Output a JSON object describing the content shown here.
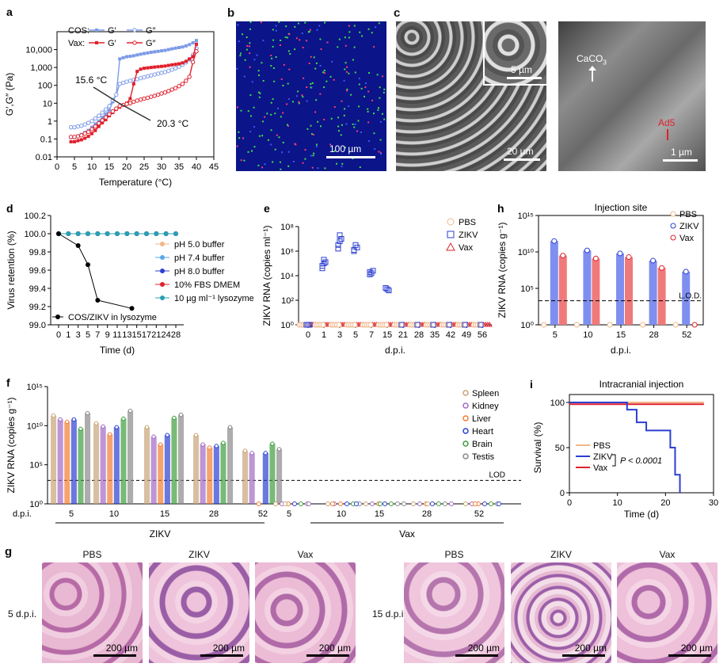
{
  "panel_labels": {
    "a": "a",
    "b": "b",
    "c": "c",
    "d": "d",
    "e": "e",
    "f": "f",
    "g": "g",
    "h": "h",
    "i": "i"
  },
  "colors": {
    "cos": "#7d9be8",
    "vax": "#e0202c",
    "pbs": "#f0b78a",
    "zikv": "#2b3fd1",
    "blue_fill": "#7f8ff0",
    "red_fill": "#f07a7a"
  },
  "images": {
    "b_scale": "100 µm",
    "c_inset_scale": "5 µm",
    "c_scale": "20 µm",
    "c2_label1": "CaCO",
    "c2_label1_sub": "3",
    "c2_label2": "Ad5",
    "c2_scale": "1 µm"
  },
  "panel_g": {
    "row_labels": [
      "5 d.p.i.",
      "15 d.p.i."
    ],
    "titles": [
      "PBS",
      "ZIKV",
      "Vax",
      "PBS",
      "ZIKV",
      "Vax"
    ],
    "scale": "200 µm"
  },
  "chart_data": [
    {
      "id": "a",
      "type": "line",
      "xlabel": "Temperature (°C)",
      "ylabel": "G′,G″ (Pa)",
      "xlim": [
        0,
        45
      ],
      "ylim": [
        0.01,
        100000
      ],
      "yscale": "log",
      "xticks": [
        "0",
        "5",
        "10",
        "15",
        "20",
        "25",
        "30",
        "35",
        "40",
        "45"
      ],
      "yticks": [
        "0.01",
        "0.1",
        "1",
        "10",
        "100",
        "1,000",
        "10,000"
      ],
      "legend_rows": [
        "COS:",
        "Vax:"
      ],
      "legend_items": [
        "G′",
        "G″"
      ],
      "annotations": [
        "15.6 °C",
        "20.3 °C"
      ],
      "x": [
        4,
        5,
        6,
        7,
        8,
        9,
        10,
        11,
        12,
        13,
        14,
        15,
        16,
        17,
        18,
        19,
        20,
        21,
        22,
        23,
        24,
        25,
        26,
        27,
        28,
        29,
        30,
        31,
        32,
        33,
        34,
        35,
        36,
        37,
        38,
        39,
        40
      ],
      "series": [
        {
          "name": "COS G′",
          "y": [
            0.12,
            0.12,
            0.15,
            0.18,
            0.23,
            0.3,
            0.45,
            0.7,
            1.0,
            1.6,
            2.5,
            4,
            12,
            30,
            3000,
            3500,
            4000,
            4200,
            4500,
            5000,
            5500,
            6000,
            6500,
            7000,
            7500,
            8000,
            8500,
            9000,
            10000,
            11000,
            12000,
            13000,
            14000,
            16000,
            19000,
            24000,
            32000
          ]
        },
        {
          "name": "COS G″",
          "y": [
            0.45,
            0.45,
            0.5,
            0.55,
            0.65,
            0.8,
            1.0,
            1.4,
            2.0,
            3.0,
            4.5,
            7,
            15,
            30,
            120,
            140,
            160,
            180,
            200,
            220,
            250,
            280,
            320,
            360,
            400,
            450,
            500,
            550,
            650,
            750,
            900,
            1100,
            1400,
            1900,
            2800,
            5000,
            12000
          ]
        },
        {
          "name": "Vax G′",
          "y": [
            0.07,
            0.07,
            0.08,
            0.09,
            0.11,
            0.14,
            0.2,
            0.3,
            0.5,
            0.8,
            1.2,
            2.0,
            3.0,
            4.5,
            6,
            8,
            10,
            18,
            120,
            600,
            800,
            900,
            950,
            1000,
            1050,
            1100,
            1150,
            1200,
            1300,
            1400,
            1500,
            1600,
            1800,
            2200,
            3000,
            4000,
            20000
          ]
        },
        {
          "name": "Vax G″",
          "y": [
            0.13,
            0.13,
            0.14,
            0.16,
            0.2,
            0.25,
            0.35,
            0.5,
            0.75,
            1.1,
            1.6,
            2.4,
            3.5,
            5,
            7,
            8,
            9,
            10,
            12,
            14,
            16,
            18,
            20,
            23,
            26,
            30,
            35,
            40,
            48,
            58,
            70,
            90,
            120,
            180,
            300,
            2000,
            8000
          ]
        }
      ]
    },
    {
      "id": "d",
      "type": "line",
      "xlabel": "Time (d)",
      "ylabel": "Virus retention (%)",
      "ylim": [
        99.0,
        100.2
      ],
      "xticks": [
        "0",
        "1",
        "3",
        "5",
        "7",
        "9",
        "11",
        "13",
        "15",
        "17",
        "21",
        "24",
        "28"
      ],
      "yticks": [
        "99.0",
        "99.2",
        "99.4",
        "99.6",
        "99.8",
        "100.0",
        "100.2"
      ],
      "legend": [
        "pH 5.0 buffer",
        "pH 7.4 buffer",
        "pH 8.0 buffer",
        "10% FBS DMEM",
        "10 µg ml⁻¹ lysozyme",
        "COS/ZIKV in lysozyme"
      ],
      "series": [
        {
          "name": "pH 5.0 buffer",
          "color": "#f0b78a",
          "y": 100.0
        },
        {
          "name": "pH 7.4 buffer",
          "color": "#5ba7e8",
          "y": 100.0
        },
        {
          "name": "pH 8.0 buffer",
          "color": "#2b3fd1",
          "y": 100.0
        },
        {
          "name": "10% FBS DMEM",
          "color": "#e0202c",
          "y": 100.0
        },
        {
          "name": "10 µg ml⁻¹ lysozyme",
          "color": "#27a0b4",
          "y": 100.0
        },
        {
          "name": "COS/ZIKV in lysozyme",
          "color": "#000000",
          "x": [
            0,
            3,
            5,
            7,
            14
          ],
          "y": [
            100.0,
            99.87,
            99.66,
            99.27,
            99.18
          ]
        }
      ]
    },
    {
      "id": "e",
      "type": "scatter",
      "xlabel": "d.p.i.",
      "ylabel": "ZIKV RNA (copies ml⁻¹)",
      "xticks": [
        "0",
        "1",
        "3",
        "5",
        "7",
        "15",
        "21",
        "28",
        "35",
        "42",
        "49",
        "56"
      ],
      "yticks": [
        "10⁰",
        "10²",
        "10⁴",
        "10⁶",
        "10⁸"
      ],
      "legend": [
        "PBS",
        "ZIKV",
        "Vax"
      ],
      "zikv_log": [
        [
          0,
          0,
          0
        ],
        [
          4.6,
          5.0,
          5.1,
          4.8,
          5.3
        ],
        [
          6.2,
          6.8,
          7.0,
          6.5,
          7.3
        ],
        [
          6.1,
          6.5,
          6.3,
          6.0
        ],
        [
          4.3,
          4.2,
          4.4,
          4.1
        ],
        [
          3.0,
          2.9,
          2.8
        ],
        [
          0
        ],
        [
          0
        ],
        [
          0
        ],
        [
          0
        ],
        [
          0
        ],
        [
          0
        ]
      ]
    },
    {
      "id": "h",
      "type": "bar",
      "title": "Injection site",
      "xlabel": "d.p.i.",
      "ylabel": "ZIKV RNA (copies g⁻¹)",
      "categories": [
        "5",
        "10",
        "15",
        "28",
        "52"
      ],
      "yticks": [
        "10⁰",
        "10⁵",
        "10¹⁰",
        "10¹⁵"
      ],
      "lod": "L.O.D.",
      "lod_log": 3.3,
      "legend": [
        "PBS",
        "ZIKV",
        "Vax"
      ],
      "series": [
        {
          "name": "PBS",
          "values": [
            0,
            0,
            0,
            0,
            0
          ]
        },
        {
          "name": "ZIKV",
          "values": [
            11.5,
            10.2,
            9.8,
            8.8,
            7.3
          ]
        },
        {
          "name": "Vax",
          "values": [
            9.5,
            9.1,
            9.3,
            7.8,
            0
          ]
        }
      ]
    },
    {
      "id": "f",
      "type": "bar",
      "ylabel": "ZIKV RNA (copies g⁻¹)",
      "yticks": [
        "10⁰",
        "10⁵",
        "10¹⁰",
        "10¹⁵"
      ],
      "lod": "LOD",
      "lod_log": 3.0,
      "xrow": "d.p.i.",
      "categories_zikv": [
        "5",
        "10",
        "15",
        "28",
        "52"
      ],
      "categories_vax": [
        "5",
        "10",
        "15",
        "28",
        "52"
      ],
      "group_labels": [
        "ZIKV",
        "Vax"
      ],
      "legend": [
        "Spleen",
        "Kidney",
        "Liver",
        "Heart",
        "Brain",
        "Testis"
      ],
      "legend_colors": [
        "#c8a478",
        "#a368c4",
        "#f27d32",
        "#2b3fd1",
        "#3f9e3f",
        "#8a8a8a"
      ],
      "series": [
        {
          "name": "Spleen",
          "values": [
            11.3,
            10.3,
            9.8,
            8.8,
            6.8
          ]
        },
        {
          "name": "Kidney",
          "values": [
            10.8,
            9.9,
            8.6,
            7.6,
            6.5
          ]
        },
        {
          "name": "Liver",
          "values": [
            10.5,
            8.9,
            7.6,
            7.2,
            0
          ]
        },
        {
          "name": "Heart",
          "values": [
            10.8,
            9.8,
            8.8,
            7.4,
            6.5
          ]
        },
        {
          "name": "Brain",
          "values": [
            9.6,
            10.9,
            11.0,
            7.8,
            7.7
          ]
        },
        {
          "name": "Testis",
          "values": [
            11.6,
            11.9,
            11.4,
            9.8,
            7.0
          ]
        }
      ]
    },
    {
      "id": "i",
      "type": "line",
      "title": "Intracranial injection",
      "xlabel": "Time (d)",
      "ylabel": "Survival (%)",
      "xticks": [
        "0",
        "10",
        "20",
        "30"
      ],
      "yticks": [
        "0",
        "50",
        "100"
      ],
      "legend": [
        "PBS",
        "ZIKV",
        "Vax"
      ],
      "pvalue": "P < 0.0001",
      "series": [
        {
          "name": "PBS",
          "x": [
            0,
            28
          ],
          "y": [
            100,
            100
          ]
        },
        {
          "name": "Vax",
          "x": [
            0,
            28
          ],
          "y": [
            98,
            98
          ]
        },
        {
          "name": "ZIKV",
          "x": [
            0,
            12,
            12,
            14,
            14,
            16,
            16,
            21,
            21,
            22,
            22,
            23,
            23
          ],
          "y": [
            100,
            100,
            92,
            92,
            78,
            78,
            69,
            69,
            50,
            50,
            20,
            20,
            0
          ]
        }
      ]
    }
  ]
}
